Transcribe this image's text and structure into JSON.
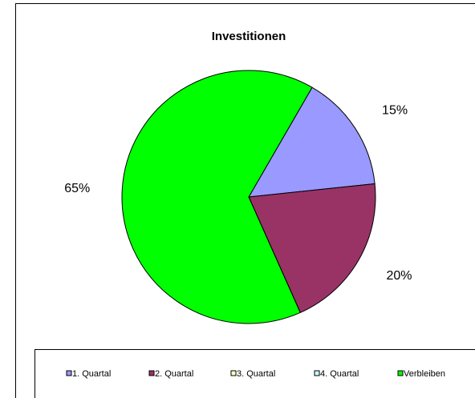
{
  "chart_data": {
    "type": "pie",
    "title": "Investitionen",
    "categories": [
      "1. Quartal",
      "2. Quartal",
      "3. Quartal",
      "4. Quartal",
      "Verbleiben"
    ],
    "values": [
      15,
      20,
      0,
      0,
      65
    ],
    "value_labels": [
      "15%",
      "20%",
      null,
      null,
      "65%"
    ],
    "colors": [
      "#9999ff",
      "#993366",
      "#ffffcc",
      "#ccffff",
      "#00ff00"
    ],
    "legend": "bottom"
  }
}
